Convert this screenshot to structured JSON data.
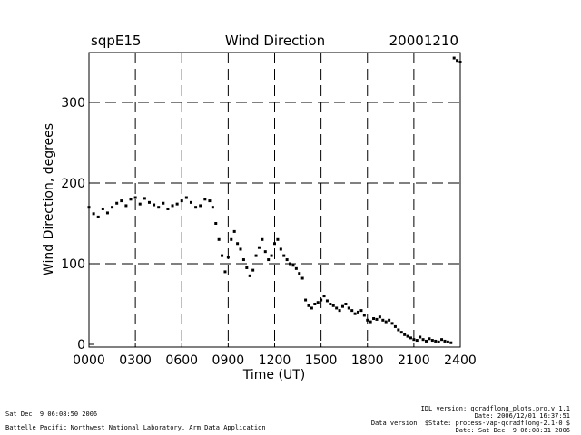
{
  "chart_data": {
    "type": "scatter",
    "title": "Wind Direction",
    "site": "sqpE15",
    "date": "20001210",
    "xlabel": "Time (UT)",
    "ylabel": "Wind Direction, degrees",
    "xlim": [
      0,
      2400
    ],
    "ylim": [
      0,
      360
    ],
    "x_ticks": [
      "0000",
      "0300",
      "0600",
      "0900",
      "1200",
      "1500",
      "1800",
      "2100",
      "2400"
    ],
    "y_ticks": [
      "0",
      "100",
      "200",
      "300"
    ],
    "grid": "dashed",
    "series": [
      {
        "points": [
          [
            0,
            170
          ],
          [
            30,
            162
          ],
          [
            60,
            158
          ],
          [
            90,
            168
          ],
          [
            120,
            163
          ],
          [
            150,
            170
          ],
          [
            180,
            175
          ],
          [
            210,
            178
          ],
          [
            240,
            172
          ],
          [
            270,
            180
          ],
          [
            300,
            182
          ],
          [
            330,
            174
          ],
          [
            360,
            181
          ],
          [
            390,
            176
          ],
          [
            420,
            173
          ],
          [
            450,
            170
          ],
          [
            480,
            175
          ],
          [
            510,
            168
          ],
          [
            540,
            172
          ],
          [
            570,
            174
          ],
          [
            600,
            178
          ],
          [
            630,
            182
          ],
          [
            660,
            176
          ],
          [
            690,
            170
          ],
          [
            720,
            172
          ],
          [
            750,
            180
          ],
          [
            780,
            178
          ],
          [
            800,
            170
          ],
          [
            820,
            150
          ],
          [
            840,
            130
          ],
          [
            860,
            110
          ],
          [
            880,
            90
          ],
          [
            900,
            108
          ],
          [
            920,
            130
          ],
          [
            940,
            140
          ],
          [
            960,
            125
          ],
          [
            980,
            118
          ],
          [
            1000,
            105
          ],
          [
            1020,
            95
          ],
          [
            1040,
            85
          ],
          [
            1060,
            92
          ],
          [
            1080,
            110
          ],
          [
            1100,
            120
          ],
          [
            1120,
            130
          ],
          [
            1140,
            115
          ],
          [
            1160,
            105
          ],
          [
            1180,
            110
          ],
          [
            1200,
            125
          ],
          [
            1220,
            130
          ],
          [
            1240,
            118
          ],
          [
            1260,
            110
          ],
          [
            1280,
            105
          ],
          [
            1300,
            100
          ],
          [
            1320,
            98
          ],
          [
            1340,
            94
          ],
          [
            1360,
            88
          ],
          [
            1380,
            82
          ],
          [
            1400,
            55
          ],
          [
            1420,
            48
          ],
          [
            1440,
            45
          ],
          [
            1460,
            50
          ],
          [
            1480,
            52
          ],
          [
            1500,
            55
          ],
          [
            1520,
            60
          ],
          [
            1540,
            54
          ],
          [
            1560,
            50
          ],
          [
            1580,
            48
          ],
          [
            1600,
            45
          ],
          [
            1620,
            42
          ],
          [
            1640,
            47
          ],
          [
            1660,
            50
          ],
          [
            1680,
            45
          ],
          [
            1700,
            42
          ],
          [
            1720,
            38
          ],
          [
            1740,
            40
          ],
          [
            1760,
            42
          ],
          [
            1780,
            36
          ],
          [
            1800,
            30
          ],
          [
            1820,
            28
          ],
          [
            1840,
            32
          ],
          [
            1860,
            31
          ],
          [
            1880,
            34
          ],
          [
            1900,
            30
          ],
          [
            1920,
            28
          ],
          [
            1940,
            30
          ],
          [
            1960,
            26
          ],
          [
            1980,
            22
          ],
          [
            2000,
            18
          ],
          [
            2020,
            15
          ],
          [
            2040,
            12
          ],
          [
            2060,
            10
          ],
          [
            2080,
            8
          ],
          [
            2100,
            6
          ],
          [
            2120,
            5
          ],
          [
            2140,
            9
          ],
          [
            2160,
            6
          ],
          [
            2180,
            4
          ],
          [
            2200,
            7
          ],
          [
            2220,
            5
          ],
          [
            2240,
            4
          ],
          [
            2260,
            3
          ],
          [
            2280,
            6
          ],
          [
            2300,
            4
          ],
          [
            2320,
            3
          ],
          [
            2340,
            2
          ],
          [
            2360,
            355
          ],
          [
            2380,
            352
          ],
          [
            2400,
            350
          ]
        ]
      }
    ]
  },
  "footer": {
    "left_date": "Sat Dec  9 06:08:50 2006",
    "left_org": "Battelle Pacific Northwest National Laboratory, Arm Data Application",
    "right_line1": "IDL version: qcradflong_plots.pro,v 1.1",
    "right_line2": "Date: 2006/12/01 16:37:51",
    "right_line3": "Data version: $State: process-vap-qcradflong-2.1-0 $",
    "right_line4": "Date: Sat Dec  9 06:08:31 2006"
  }
}
